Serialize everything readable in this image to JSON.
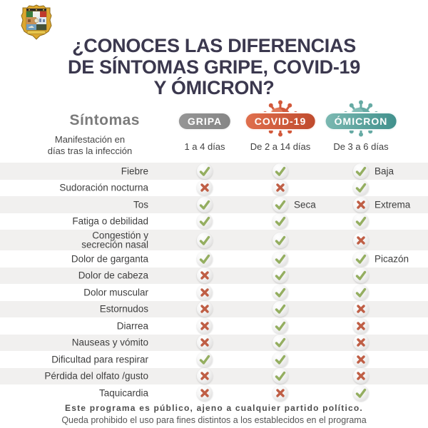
{
  "logo": {
    "icon": "state-coat-of-arms"
  },
  "title": {
    "text": "¿CONOCES LAS DIFERENCIAS\nDE SÍNTOMAS GRIPE, COVID-19\nY ÓMICRON?"
  },
  "table": {
    "symptoms_header": "Síntomas",
    "manifestation_label": "Manifestación en\ndías tras la infección",
    "columns": [
      {
        "label": "GRIPA",
        "days": "1 a 4 días",
        "badge_color_start": "#969696",
        "badge_color_end": "#858585",
        "virus": false
      },
      {
        "label": "COVID-19",
        "days": "De 2 a 14 días",
        "badge_color_start": "#e0704e",
        "badge_color_end": "#bf4a2d",
        "virus": true,
        "virus_color": "#d2593b",
        "virus_light": "#eb9372",
        "virus_dark": "#b04028"
      },
      {
        "label": "ÓMICRON",
        "days": "De 3 a 6 días",
        "badge_color_start": "#7cb9b2",
        "badge_color_end": "#40908c",
        "virus": true,
        "virus_color": "#66aaa4",
        "virus_light": "#99cac4",
        "virus_dark": "#3f8781"
      }
    ],
    "rows": [
      {
        "symptom": "Fiebre",
        "marks": [
          {
            "m": "check"
          },
          {
            "m": "check"
          },
          {
            "m": "check",
            "note": "Baja"
          }
        ]
      },
      {
        "symptom": "Sudoración nocturna",
        "marks": [
          {
            "m": "cross"
          },
          {
            "m": "cross"
          },
          {
            "m": "check"
          }
        ]
      },
      {
        "symptom": "Tos",
        "marks": [
          {
            "m": "check"
          },
          {
            "m": "check",
            "note": "Seca"
          },
          {
            "m": "cross",
            "note": "Extrema"
          }
        ]
      },
      {
        "symptom": "Fatiga o debilidad",
        "marks": [
          {
            "m": "check"
          },
          {
            "m": "check"
          },
          {
            "m": "check"
          }
        ]
      },
      {
        "symptom": "Congestión y\nsecreción nasal",
        "marks": [
          {
            "m": "check"
          },
          {
            "m": "check"
          },
          {
            "m": "cross"
          }
        ]
      },
      {
        "symptom": "Dolor de garganta",
        "marks": [
          {
            "m": "check"
          },
          {
            "m": "check"
          },
          {
            "m": "check",
            "note": "Picazón"
          }
        ]
      },
      {
        "symptom": "Dolor de cabeza",
        "marks": [
          {
            "m": "cross"
          },
          {
            "m": "check"
          },
          {
            "m": "check"
          }
        ]
      },
      {
        "symptom": "Dolor muscular",
        "marks": [
          {
            "m": "cross"
          },
          {
            "m": "check"
          },
          {
            "m": "check"
          }
        ]
      },
      {
        "symptom": "Estornudos",
        "marks": [
          {
            "m": "cross"
          },
          {
            "m": "check"
          },
          {
            "m": "cross"
          }
        ]
      },
      {
        "symptom": "Diarrea",
        "marks": [
          {
            "m": "cross"
          },
          {
            "m": "check"
          },
          {
            "m": "cross"
          }
        ]
      },
      {
        "symptom": "Nauseas y vómito",
        "marks": [
          {
            "m": "cross"
          },
          {
            "m": "check"
          },
          {
            "m": "cross"
          }
        ]
      },
      {
        "symptom": "Dificultad para respirar",
        "marks": [
          {
            "m": "check"
          },
          {
            "m": "check"
          },
          {
            "m": "cross"
          }
        ]
      },
      {
        "symptom": "Pérdida del olfato /gusto",
        "marks": [
          {
            "m": "cross"
          },
          {
            "m": "check"
          },
          {
            "m": "cross"
          }
        ]
      },
      {
        "symptom": "Taquicardia",
        "marks": [
          {
            "m": "cross"
          },
          {
            "m": "cross"
          },
          {
            "m": "check"
          }
        ]
      }
    ]
  },
  "footer": {
    "line1": "Este programa es público, ajeno a cualquier partido político.",
    "line2": "Queda prohibido el uso para fines distintos a los establecidos en el programa"
  },
  "colors": {
    "title": "#3b384e",
    "check": "#94ae60",
    "cross": "#bf5e45",
    "stripe": "#f1f0ef",
    "gripa_badge": "#8f8f8f",
    "covid_badge": "#cf573a",
    "omicron_badge": "#5ea49f"
  }
}
